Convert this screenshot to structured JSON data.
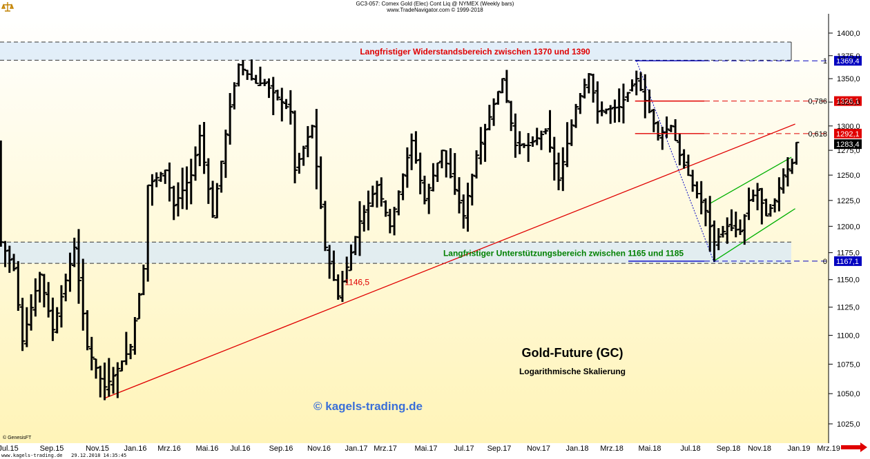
{
  "header": {
    "title": "GC3-057:  Comex Gold (Elec) Cont Liq @ NYMEX  (Weekly bars)",
    "copyright": "www.TradeNavigator.com © 1999-2018"
  },
  "footer": {
    "genesis": "© GenesisFT",
    "site": "www.kagels-trading.de",
    "timestamp": "29.12.2018 14:35:45"
  },
  "colors": {
    "background_top": "#ffffff",
    "background_bottom": "#fff5c0",
    "bars": "#000000",
    "support_resistance_line": "#e00000",
    "channel": "#00b000",
    "fib_level": "#0000c0",
    "fib_red": "#e00000"
  },
  "chart_data": {
    "type": "bar",
    "title": "Gold-Future (GC)",
    "subtitle": "Logarithmische Skalierung",
    "watermark": "© kagels-trading.de",
    "y_axis": {
      "position": "right",
      "scale": "log",
      "ticks": [
        "1025,0",
        "1050,0",
        "1075,0",
        "1100,0",
        "1125,0",
        "1150,0",
        "1175,0",
        "1200,0",
        "1225,0",
        "1250,0",
        "1275,0",
        "1300,0",
        "1325,0",
        "1350,0",
        "1375,0",
        "1400,0"
      ],
      "ylim": [
        1010,
        1415
      ]
    },
    "x_axis": {
      "labels": [
        "Jul.15",
        "Sep.15",
        "Nov.15",
        "Jan.16",
        "Mrz.16",
        "Mai.16",
        "Jul.16",
        "Sep.16",
        "Nov.16",
        "Jan.17",
        "Mrz.17",
        "Mai.17",
        "Jul.17",
        "Sep.17",
        "Nov.17",
        "Jan.18",
        "Mrz.18",
        "Mai.18",
        "Jul.18",
        "Sep.18",
        "Nov.18",
        "Jan.19",
        "Mrz.19"
      ],
      "start": "2015-06-15",
      "end": "2019-03-25"
    },
    "zones": [
      {
        "label": "Langfristiger Widerstandsbereich zwischen 1370 und 1390",
        "low": 1370,
        "high": 1390,
        "label_color": "#e00000"
      },
      {
        "label": "Langfristiger Unterstützungsbereich zwischen 1165 und 1185",
        "low": 1165,
        "high": 1185,
        "label_color": "#008000"
      }
    ],
    "fib_levels": [
      {
        "ratio": "1",
        "value": 1369.4,
        "price_label": "1369,4",
        "color": "#0000c0"
      },
      {
        "ratio": "0,786",
        "value": 1326.1,
        "price_label": "1326,1",
        "color": "#e00000"
      },
      {
        "ratio": "0,618",
        "value": 1292.1,
        "price_label": "1292,1",
        "color": "#e00000"
      },
      {
        "ratio": "0",
        "value": 1167.1,
        "price_label": "1167,1",
        "color": "#0000c0"
      }
    ],
    "current_price": {
      "value": 1283.4,
      "label": "1283,4"
    },
    "annotations": [
      {
        "text": "1146,5",
        "date": "2016-12-20",
        "value": 1146.5
      }
    ],
    "trendline": {
      "from": {
        "date": "2015-12-03",
        "value": 1046
      },
      "to": {
        "date": "2018-12-26",
        "value": 1302
      }
    },
    "channel": {
      "upper": {
        "from": {
          "date": "2018-08-10",
          "value": 1222
        },
        "to": {
          "date": "2018-12-20",
          "value": 1268
        }
      },
      "lower": {
        "from": {
          "date": "2018-08-16",
          "value": 1167
        },
        "to": {
          "date": "2018-12-26",
          "value": 1217
        }
      }
    },
    "weekly_closes": [
      {
        "date": "2015-06-19",
        "value": 1185
      },
      {
        "date": "2015-07-10",
        "value": 1160
      },
      {
        "date": "2015-07-24",
        "value": 1095
      },
      {
        "date": "2015-08-21",
        "value": 1155
      },
      {
        "date": "2015-09-11",
        "value": 1105
      },
      {
        "date": "2015-10-16",
        "value": 1180
      },
      {
        "date": "2015-11-06",
        "value": 1090
      },
      {
        "date": "2015-12-03",
        "value": 1055
      },
      {
        "date": "2015-12-18",
        "value": 1065
      },
      {
        "date": "2016-01-15",
        "value": 1090
      },
      {
        "date": "2016-02-05",
        "value": 1160
      },
      {
        "date": "2016-02-12",
        "value": 1240
      },
      {
        "date": "2016-03-11",
        "value": 1255
      },
      {
        "date": "2016-03-25",
        "value": 1220
      },
      {
        "date": "2016-04-22",
        "value": 1250
      },
      {
        "date": "2016-05-06",
        "value": 1290
      },
      {
        "date": "2016-05-27",
        "value": 1210
      },
      {
        "date": "2016-06-24",
        "value": 1320
      },
      {
        "date": "2016-07-08",
        "value": 1365
      },
      {
        "date": "2016-08-05",
        "value": 1345
      },
      {
        "date": "2016-08-19",
        "value": 1345
      },
      {
        "date": "2016-09-09",
        "value": 1330
      },
      {
        "date": "2016-09-30",
        "value": 1315
      },
      {
        "date": "2016-10-07",
        "value": 1255
      },
      {
        "date": "2016-11-04",
        "value": 1300
      },
      {
        "date": "2016-11-25",
        "value": 1180
      },
      {
        "date": "2016-12-16",
        "value": 1135
      },
      {
        "date": "2017-01-06",
        "value": 1175
      },
      {
        "date": "2017-01-20",
        "value": 1205
      },
      {
        "date": "2017-02-17",
        "value": 1240
      },
      {
        "date": "2017-03-10",
        "value": 1200
      },
      {
        "date": "2017-04-14",
        "value": 1285
      },
      {
        "date": "2017-05-05",
        "value": 1225
      },
      {
        "date": "2017-06-02",
        "value": 1275
      },
      {
        "date": "2017-07-07",
        "value": 1210
      },
      {
        "date": "2017-07-28",
        "value": 1270
      },
      {
        "date": "2017-09-08",
        "value": 1350
      },
      {
        "date": "2017-09-29",
        "value": 1280
      },
      {
        "date": "2017-10-20",
        "value": 1280
      },
      {
        "date": "2017-11-17",
        "value": 1295
      },
      {
        "date": "2017-12-08",
        "value": 1245
      },
      {
        "date": "2018-01-05",
        "value": 1320
      },
      {
        "date": "2018-01-26",
        "value": 1355
      },
      {
        "date": "2018-02-09",
        "value": 1315
      },
      {
        "date": "2018-03-16",
        "value": 1320
      },
      {
        "date": "2018-04-13",
        "value": 1350
      },
      {
        "date": "2018-05-04",
        "value": 1315
      },
      {
        "date": "2018-05-18",
        "value": 1290
      },
      {
        "date": "2018-06-08",
        "value": 1300
      },
      {
        "date": "2018-06-22",
        "value": 1270
      },
      {
        "date": "2018-07-13",
        "value": 1240
      },
      {
        "date": "2018-08-03",
        "value": 1215
      },
      {
        "date": "2018-08-17",
        "value": 1185
      },
      {
        "date": "2018-09-07",
        "value": 1200
      },
      {
        "date": "2018-09-28",
        "value": 1195
      },
      {
        "date": "2018-10-12",
        "value": 1225
      },
      {
        "date": "2018-10-26",
        "value": 1235
      },
      {
        "date": "2018-11-09",
        "value": 1210
      },
      {
        "date": "2018-11-23",
        "value": 1225
      },
      {
        "date": "2018-12-07",
        "value": 1250
      },
      {
        "date": "2018-12-21",
        "value": 1262
      },
      {
        "date": "2018-12-28",
        "value": 1283
      }
    ]
  }
}
